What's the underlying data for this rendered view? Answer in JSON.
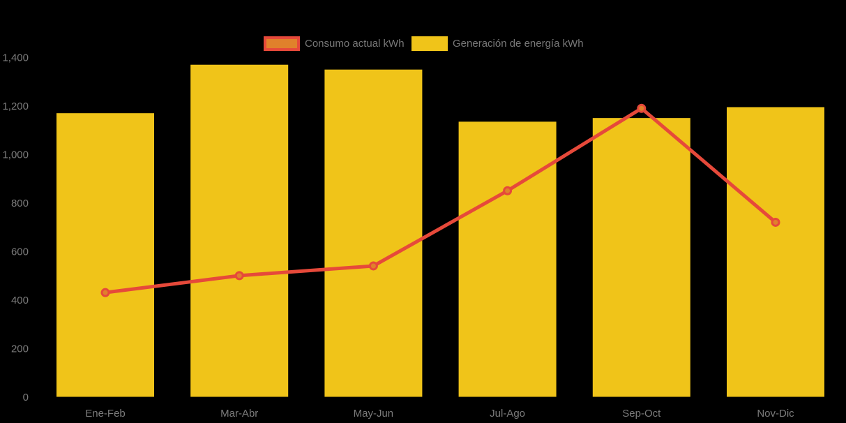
{
  "chart_data": {
    "type": "bar+line combo",
    "categories": [
      "Ene-Feb",
      "Mar-Abr",
      "May-Jun",
      "Jul-Ago",
      "Sep-Oct",
      "Nov-Dic"
    ],
    "series": [
      {
        "name": "Consumo actual kWh",
        "type": "line",
        "values": [
          430,
          500,
          540,
          850,
          1190,
          720
        ],
        "line_color": "#e6493a",
        "marker_fill": "#e0812b"
      },
      {
        "name": "Generación de energía kWh",
        "type": "bar",
        "values": [
          1170,
          1370,
          1350,
          1135,
          1150,
          1195
        ],
        "bar_color": "#f0c419"
      }
    ],
    "ylim": [
      0,
      1400
    ],
    "ytick_step": 200,
    "ytick_labels": [
      "0",
      "200",
      "400",
      "600",
      "800",
      "1,000",
      "1,200",
      "1,400"
    ],
    "xlabel": "",
    "ylabel": "",
    "grid": false,
    "legend_position": "top-center",
    "axis_text_color": "#7b7b7b",
    "background_color": "#000000"
  }
}
